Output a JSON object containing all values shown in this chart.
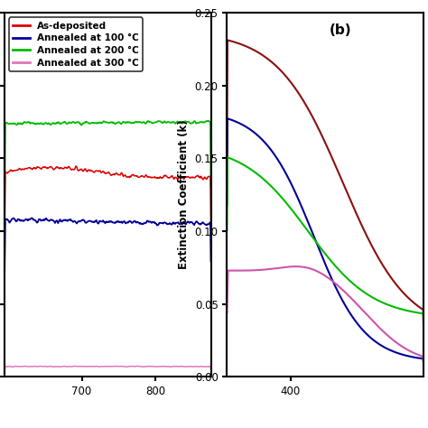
{
  "legend_labels": [
    "As-deposited",
    "Annealed at 100 °C",
    "Annealed at 200 °C",
    "Annealed at 300 °C"
  ],
  "colors_a": [
    "#dd0000",
    "#000099",
    "#00bb00",
    "#dd77bb"
  ],
  "colors_b": [
    "#8b1010",
    "#000099",
    "#00bb00",
    "#cc55aa"
  ],
  "ylabel": "Extinction Coefficient (k)",
  "panel_b_label": "(b)",
  "ylim": [
    0.0,
    0.25
  ],
  "xlim_a": [
    595,
    875
  ],
  "xlim_b": [
    345,
    515
  ],
  "xticks_a": [
    700,
    800
  ],
  "xticks_b": [
    400
  ],
  "yticks": [
    0.0,
    0.05,
    0.1,
    0.15,
    0.2,
    0.25
  ],
  "background": "#ffffff",
  "figsize": [
    4.74,
    4.74
  ],
  "dpi": 100
}
